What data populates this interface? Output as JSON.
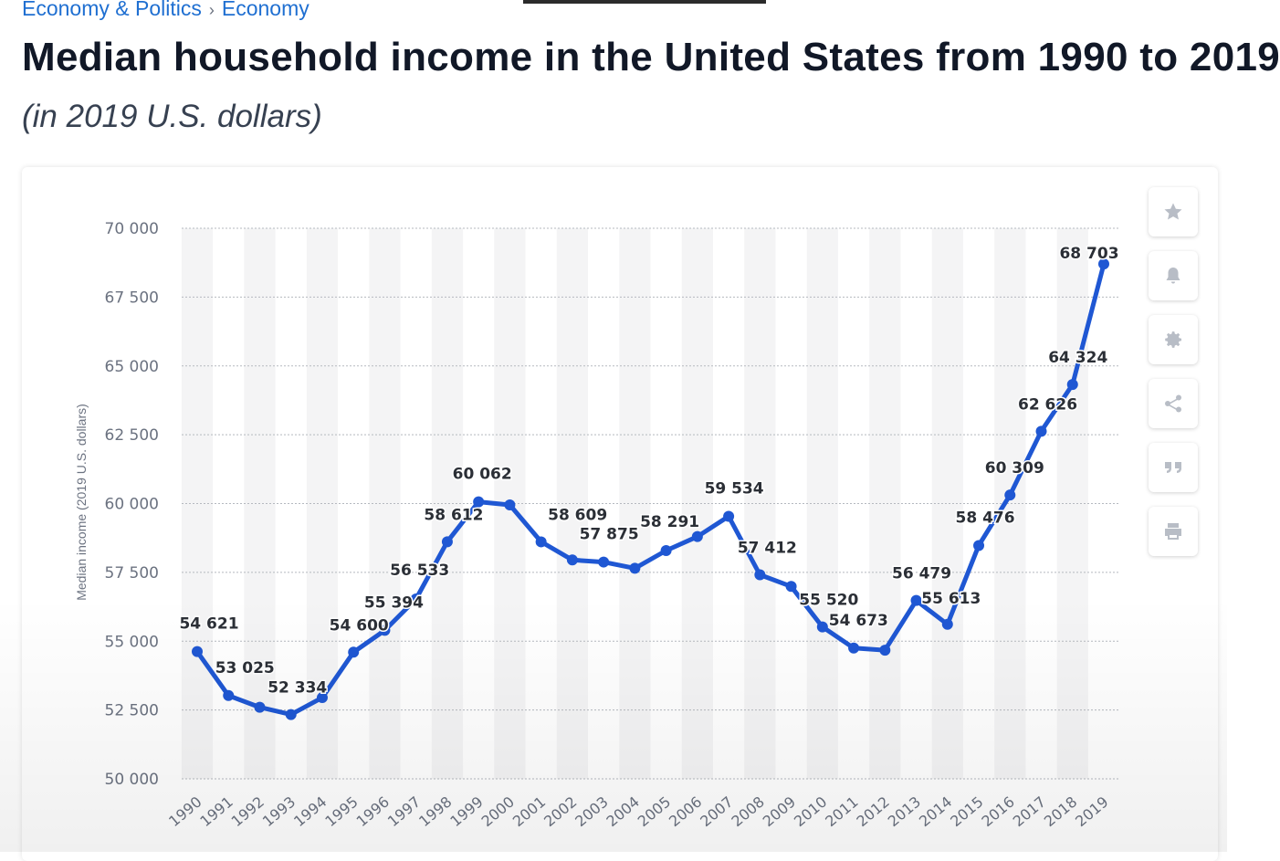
{
  "breadcrumb": {
    "parent": "Economy & Politics",
    "current": "Economy"
  },
  "header": {
    "title": "Median household income in the United States from 1990 to 2019",
    "subtitle": "(in 2019 U.S. dollars)"
  },
  "toolbar": {
    "items": [
      {
        "icon": "star-icon"
      },
      {
        "icon": "bell-icon"
      },
      {
        "icon": "gear-icon"
      },
      {
        "icon": "share-icon"
      },
      {
        "icon": "quote-icon"
      },
      {
        "icon": "print-icon"
      }
    ]
  },
  "colors": {
    "line": "#1f57d3",
    "grid": "#b5b9bf",
    "band": "#f4f4f5",
    "label": "#2b2f36",
    "axis": "#6b7280"
  },
  "chart_data": {
    "type": "line",
    "title": "Median household income in the United States from 1990 to 2019",
    "subtitle": "(in 2019 U.S. dollars)",
    "xlabel": "",
    "ylabel": "Median income (2019 U.S. dollars)",
    "ylim": [
      50000,
      70000
    ],
    "yticks": [
      {
        "value": 50000,
        "label": "50 000"
      },
      {
        "value": 52500,
        "label": "52 500"
      },
      {
        "value": 55000,
        "label": "55 000"
      },
      {
        "value": 57500,
        "label": "57 500"
      },
      {
        "value": 60000,
        "label": "60 000"
      },
      {
        "value": 62500,
        "label": "62 500"
      },
      {
        "value": 65000,
        "label": "65 000"
      },
      {
        "value": 67500,
        "label": "67 500"
      },
      {
        "value": 70000,
        "label": "70 000"
      }
    ],
    "categories": [
      "1990",
      "1991",
      "1992",
      "1993",
      "1994",
      "1995",
      "1996",
      "1997",
      "1998",
      "1999",
      "2000",
      "2001",
      "2002",
      "2003",
      "2004",
      "2005",
      "2006",
      "2007",
      "2008",
      "2009",
      "2010",
      "2011",
      "2012",
      "2013",
      "2014",
      "2015",
      "2016",
      "2017",
      "2018",
      "2019"
    ],
    "series": [
      {
        "name": "Median household income",
        "values": [
          54621,
          53025,
          52600,
          52334,
          52950,
          54600,
          55394,
          56533,
          58612,
          60062,
          59950,
          58609,
          57950,
          57875,
          57650,
          58291,
          58800,
          59534,
          57412,
          56990,
          55520,
          54750,
          54673,
          56479,
          55613,
          58476,
          60309,
          62626,
          64324,
          68703
        ],
        "labels": [
          "54 621",
          "53 025",
          "",
          "52 334",
          "",
          "54 600",
          "55 394",
          "56 533",
          "58 612",
          "60 062",
          "",
          "58 609",
          "",
          "57 875",
          "",
          "58 291",
          "",
          "59 534",
          "57 412",
          "",
          "55 520",
          "",
          "54 673",
          "56 479",
          "55 613",
          "58 476",
          "60 309",
          "62 626",
          "64 324",
          "68 703"
        ]
      }
    ]
  }
}
